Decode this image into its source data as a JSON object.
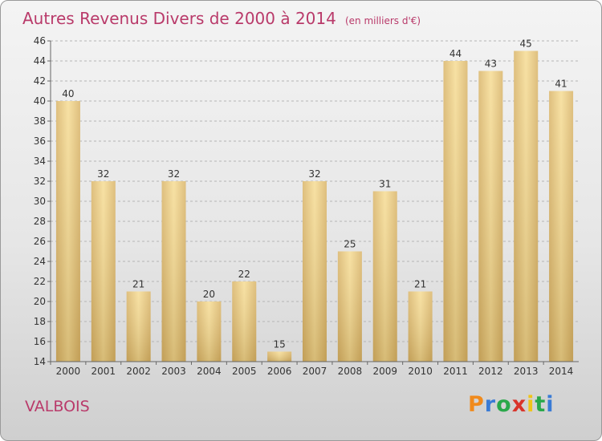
{
  "header": {
    "title": "Autres Revenus Divers de 2000 à 2014",
    "subtitle": "(en milliers d'€)"
  },
  "footer": {
    "commune": "VALBOIS",
    "logo": {
      "letters": [
        "P",
        "r",
        "o",
        "x",
        "i",
        "t",
        "i"
      ],
      "colors": [
        "#f08a1c",
        "#3a7bd5",
        "#2aa84a",
        "#d9342b",
        "#f0c419",
        "#2aa84a",
        "#3a7bd5"
      ]
    }
  },
  "chart_data": {
    "type": "bar",
    "title": "Autres Revenus Divers de 2000 à 2014",
    "subtitle": "(en milliers d'€)",
    "categories": [
      "2000",
      "2001",
      "2002",
      "2003",
      "2004",
      "2005",
      "2006",
      "2007",
      "2008",
      "2009",
      "2010",
      "2011",
      "2012",
      "2013",
      "2014"
    ],
    "values": [
      40,
      32,
      21,
      32,
      20,
      22,
      15,
      32,
      25,
      31,
      21,
      44,
      43,
      45,
      41
    ],
    "ylim": [
      14,
      46
    ],
    "yticks": [
      14,
      16,
      18,
      20,
      22,
      24,
      26,
      28,
      30,
      32,
      34,
      36,
      38,
      40,
      42,
      44,
      46
    ],
    "grid": "horizontal-dashed",
    "bar_color": "#e8c673"
  }
}
